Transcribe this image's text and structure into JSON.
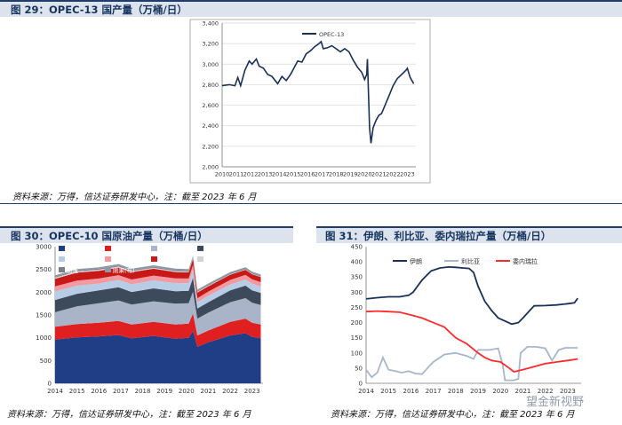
{
  "fig29": {
    "title": "图 29：OPEC-13 国产量（万桶/日）",
    "source": "资料来源：万得，信达证券研发中心，注：截至 2023 年 6 月"
  },
  "fig30": {
    "title": "图 30：OPEC-10 国原油产量（万桶/日）",
    "source": "资料来源：万得，信达证券研发中心，注：截至 2023 年 6 月"
  },
  "fig31": {
    "title": "图 31：伊朗、利比亚、委内瑞拉产量（万桶/日）",
    "source": "资料来源：万得，信达证券研发中心，注：截至 2023 年 6 月"
  },
  "watermark": "望金新视野",
  "chart_data": [
    {
      "id": "opec13",
      "type": "line",
      "legend_position": "top-center",
      "grid": true,
      "ylim": [
        2000,
        3400
      ],
      "yticks": [
        "2,000",
        "2,200",
        "2,400",
        "2,600",
        "2,800",
        "3,000",
        "3,200",
        "3,400"
      ],
      "xlim": [
        2010,
        2023.6
      ],
      "xticks": [
        "2010",
        "2011",
        "2012",
        "2013",
        "2014",
        "2015",
        "2016",
        "2017",
        "2018",
        "2019",
        "2020",
        "2021",
        "2022",
        "2023"
      ],
      "series": [
        {
          "name": "OPEC-13",
          "color": "#1a2f5a",
          "x": [
            2010.0,
            2010.5,
            2010.9,
            2011.1,
            2011.3,
            2011.6,
            2011.9,
            2012.1,
            2012.4,
            2012.6,
            2012.9,
            2013.2,
            2013.5,
            2013.9,
            2014.2,
            2014.5,
            2014.8,
            2015.0,
            2015.3,
            2015.6,
            2015.9,
            2016.2,
            2016.5,
            2016.8,
            2016.95,
            2017.1,
            2017.4,
            2017.7,
            2018.0,
            2018.3,
            2018.6,
            2018.9,
            2019.2,
            2019.5,
            2019.8,
            2020.0,
            2020.15,
            2020.2,
            2020.35,
            2020.45,
            2020.6,
            2020.8,
            2021.0,
            2021.2,
            2021.5,
            2021.8,
            2022.0,
            2022.3,
            2022.6,
            2022.9,
            2023.0,
            2023.2,
            2023.45
          ],
          "values": [
            2790,
            2800,
            2790,
            2870,
            2790,
            2940,
            3030,
            3000,
            3050,
            2980,
            2960,
            2900,
            2880,
            2810,
            2880,
            2840,
            2900,
            2950,
            3030,
            3020,
            3100,
            3130,
            3170,
            3200,
            3220,
            3150,
            3160,
            3180,
            3150,
            3120,
            3150,
            3120,
            3040,
            2970,
            2920,
            2850,
            2900,
            3050,
            2380,
            2230,
            2380,
            2450,
            2500,
            2520,
            2620,
            2720,
            2790,
            2860,
            2900,
            2940,
            2960,
            2870,
            2810
          ]
        }
      ]
    },
    {
      "id": "opec10",
      "type": "area",
      "stacked": true,
      "legend_position": "top",
      "grid": false,
      "ylim": [
        0,
        3000
      ],
      "yticks": [
        "0",
        "500",
        "1000",
        "1500",
        "2000",
        "2500",
        "3000"
      ],
      "xlim": [
        2014,
        2023.5
      ],
      "xticks": [
        "2014",
        "2015",
        "2016",
        "2017",
        "2018",
        "2019",
        "2020",
        "2021",
        "2022",
        "2023"
      ],
      "x": [
        2014.0,
        2015.0,
        2016.0,
        2016.9,
        2017.5,
        2018.5,
        2019.5,
        2020.1,
        2020.3,
        2020.5,
        2021.0,
        2022.0,
        2022.7,
        2023.0,
        2023.4
      ],
      "series": [
        {
          "name": "沙特阿拉伯",
          "color": "#1f3e86",
          "values": [
            960,
            1010,
            1030,
            1060,
            990,
            1040,
            980,
            1000,
            1150,
            800,
            900,
            1050,
            1100,
            1020,
            990
          ]
        },
        {
          "name": "阿联酋",
          "color": "#e02020",
          "values": [
            280,
            290,
            300,
            310,
            300,
            310,
            310,
            310,
            380,
            250,
            260,
            300,
            320,
            310,
            300
          ]
        },
        {
          "name": "伊拉克",
          "color": "#a9b4c8",
          "values": [
            320,
            390,
            430,
            450,
            440,
            450,
            460,
            450,
            480,
            370,
            390,
            430,
            450,
            440,
            430
          ]
        },
        {
          "name": "科威特",
          "color": "#3c4a5c",
          "values": [
            270,
            275,
            280,
            290,
            275,
            285,
            270,
            270,
            310,
            220,
            230,
            260,
            275,
            270,
            265
          ]
        },
        {
          "name": "尼日利亚",
          "color": "#b7cde6",
          "values": [
            190,
            180,
            150,
            160,
            170,
            175,
            180,
            170,
            180,
            140,
            145,
            130,
            135,
            145,
            140
          ]
        },
        {
          "name": "阿尔及利亚",
          "color": "#f29aa0",
          "values": [
            110,
            110,
            110,
            105,
            105,
            105,
            103,
            100,
            100,
            88,
            90,
            100,
            100,
            98,
            96
          ]
        },
        {
          "name": "安哥拉",
          "color": "#c81818",
          "values": [
            165,
            175,
            170,
            165,
            160,
            150,
            140,
            135,
            130,
            125,
            115,
            115,
            112,
            112,
            110
          ]
        },
        {
          "name": "赤道几内亚",
          "color": "#d4d4d4",
          "values": [
            27,
            27,
            26,
            25,
            24,
            23,
            22,
            20,
            18,
            17,
            15,
            12,
            11,
            10,
            10
          ]
        },
        {
          "name": "加蓬",
          "color": "#7a7f88",
          "values": [
            22,
            22,
            22,
            21,
            20,
            20,
            21,
            21,
            20,
            18,
            18,
            19,
            20,
            20,
            20
          ]
        },
        {
          "name": "刚果(布)",
          "color": "#9098a8",
          "values": [
            27,
            28,
            30,
            32,
            33,
            33,
            32,
            31,
            30,
            28,
            28,
            27,
            27,
            27,
            27
          ]
        }
      ]
    },
    {
      "id": "iran_libya_venezuela",
      "type": "line",
      "legend_position": "top",
      "grid": false,
      "ylim": [
        0,
        450
      ],
      "yticks": [
        "0",
        "50",
        "100",
        "150",
        "200",
        "250",
        "300",
        "350",
        "400",
        "450"
      ],
      "xlim": [
        2014,
        2023.6
      ],
      "xticks": [
        "2014",
        "2015",
        "2016",
        "2017",
        "2018",
        "2019",
        "2020",
        "2021",
        "2022",
        "2023"
      ],
      "series": [
        {
          "name": "伊朗",
          "color": "#1a2f5a",
          "x": [
            2014.0,
            2014.5,
            2015.0,
            2015.5,
            2015.9,
            2016.1,
            2016.5,
            2016.9,
            2017.3,
            2017.7,
            2018.0,
            2018.3,
            2018.6,
            2018.8,
            2019.0,
            2019.3,
            2019.6,
            2019.9,
            2020.2,
            2020.5,
            2020.8,
            2021.0,
            2021.5,
            2022.0,
            2022.5,
            2023.0,
            2023.3,
            2023.45
          ],
          "values": [
            278,
            282,
            285,
            285,
            290,
            300,
            340,
            370,
            380,
            383,
            382,
            380,
            378,
            365,
            320,
            270,
            240,
            215,
            205,
            195,
            200,
            215,
            255,
            256,
            258,
            262,
            265,
            280
          ]
        },
        {
          "name": "利比亚",
          "color": "#a7b6cc",
          "x": [
            2014.0,
            2014.25,
            2014.5,
            2014.75,
            2015.0,
            2015.3,
            2015.6,
            2015.9,
            2016.2,
            2016.5,
            2016.8,
            2017.0,
            2017.5,
            2018.0,
            2018.5,
            2018.8,
            2019.0,
            2019.5,
            2019.9,
            2020.1,
            2020.2,
            2020.6,
            2020.8,
            2020.9,
            2021.2,
            2021.6,
            2022.0,
            2022.3,
            2022.6,
            2022.9,
            2023.2,
            2023.45
          ],
          "values": [
            45,
            20,
            35,
            85,
            45,
            40,
            35,
            40,
            32,
            30,
            55,
            70,
            95,
            100,
            90,
            80,
            110,
            110,
            115,
            60,
            10,
            10,
            15,
            100,
            120,
            120,
            115,
            75,
            110,
            117,
            117,
            117
          ]
        },
        {
          "name": "委内瑞拉",
          "color": "#ff2a2a",
          "x": [
            2014.0,
            2014.5,
            2015.0,
            2015.5,
            2016.0,
            2016.5,
            2017.0,
            2017.5,
            2018.0,
            2018.5,
            2019.0,
            2019.3,
            2019.6,
            2020.0,
            2020.3,
            2020.6,
            2021.0,
            2021.5,
            2022.0,
            2022.5,
            2023.0,
            2023.45
          ],
          "values": [
            236,
            238,
            236,
            234,
            225,
            215,
            200,
            185,
            150,
            130,
            100,
            85,
            75,
            70,
            55,
            38,
            45,
            55,
            65,
            70,
            75,
            80
          ]
        }
      ]
    }
  ]
}
